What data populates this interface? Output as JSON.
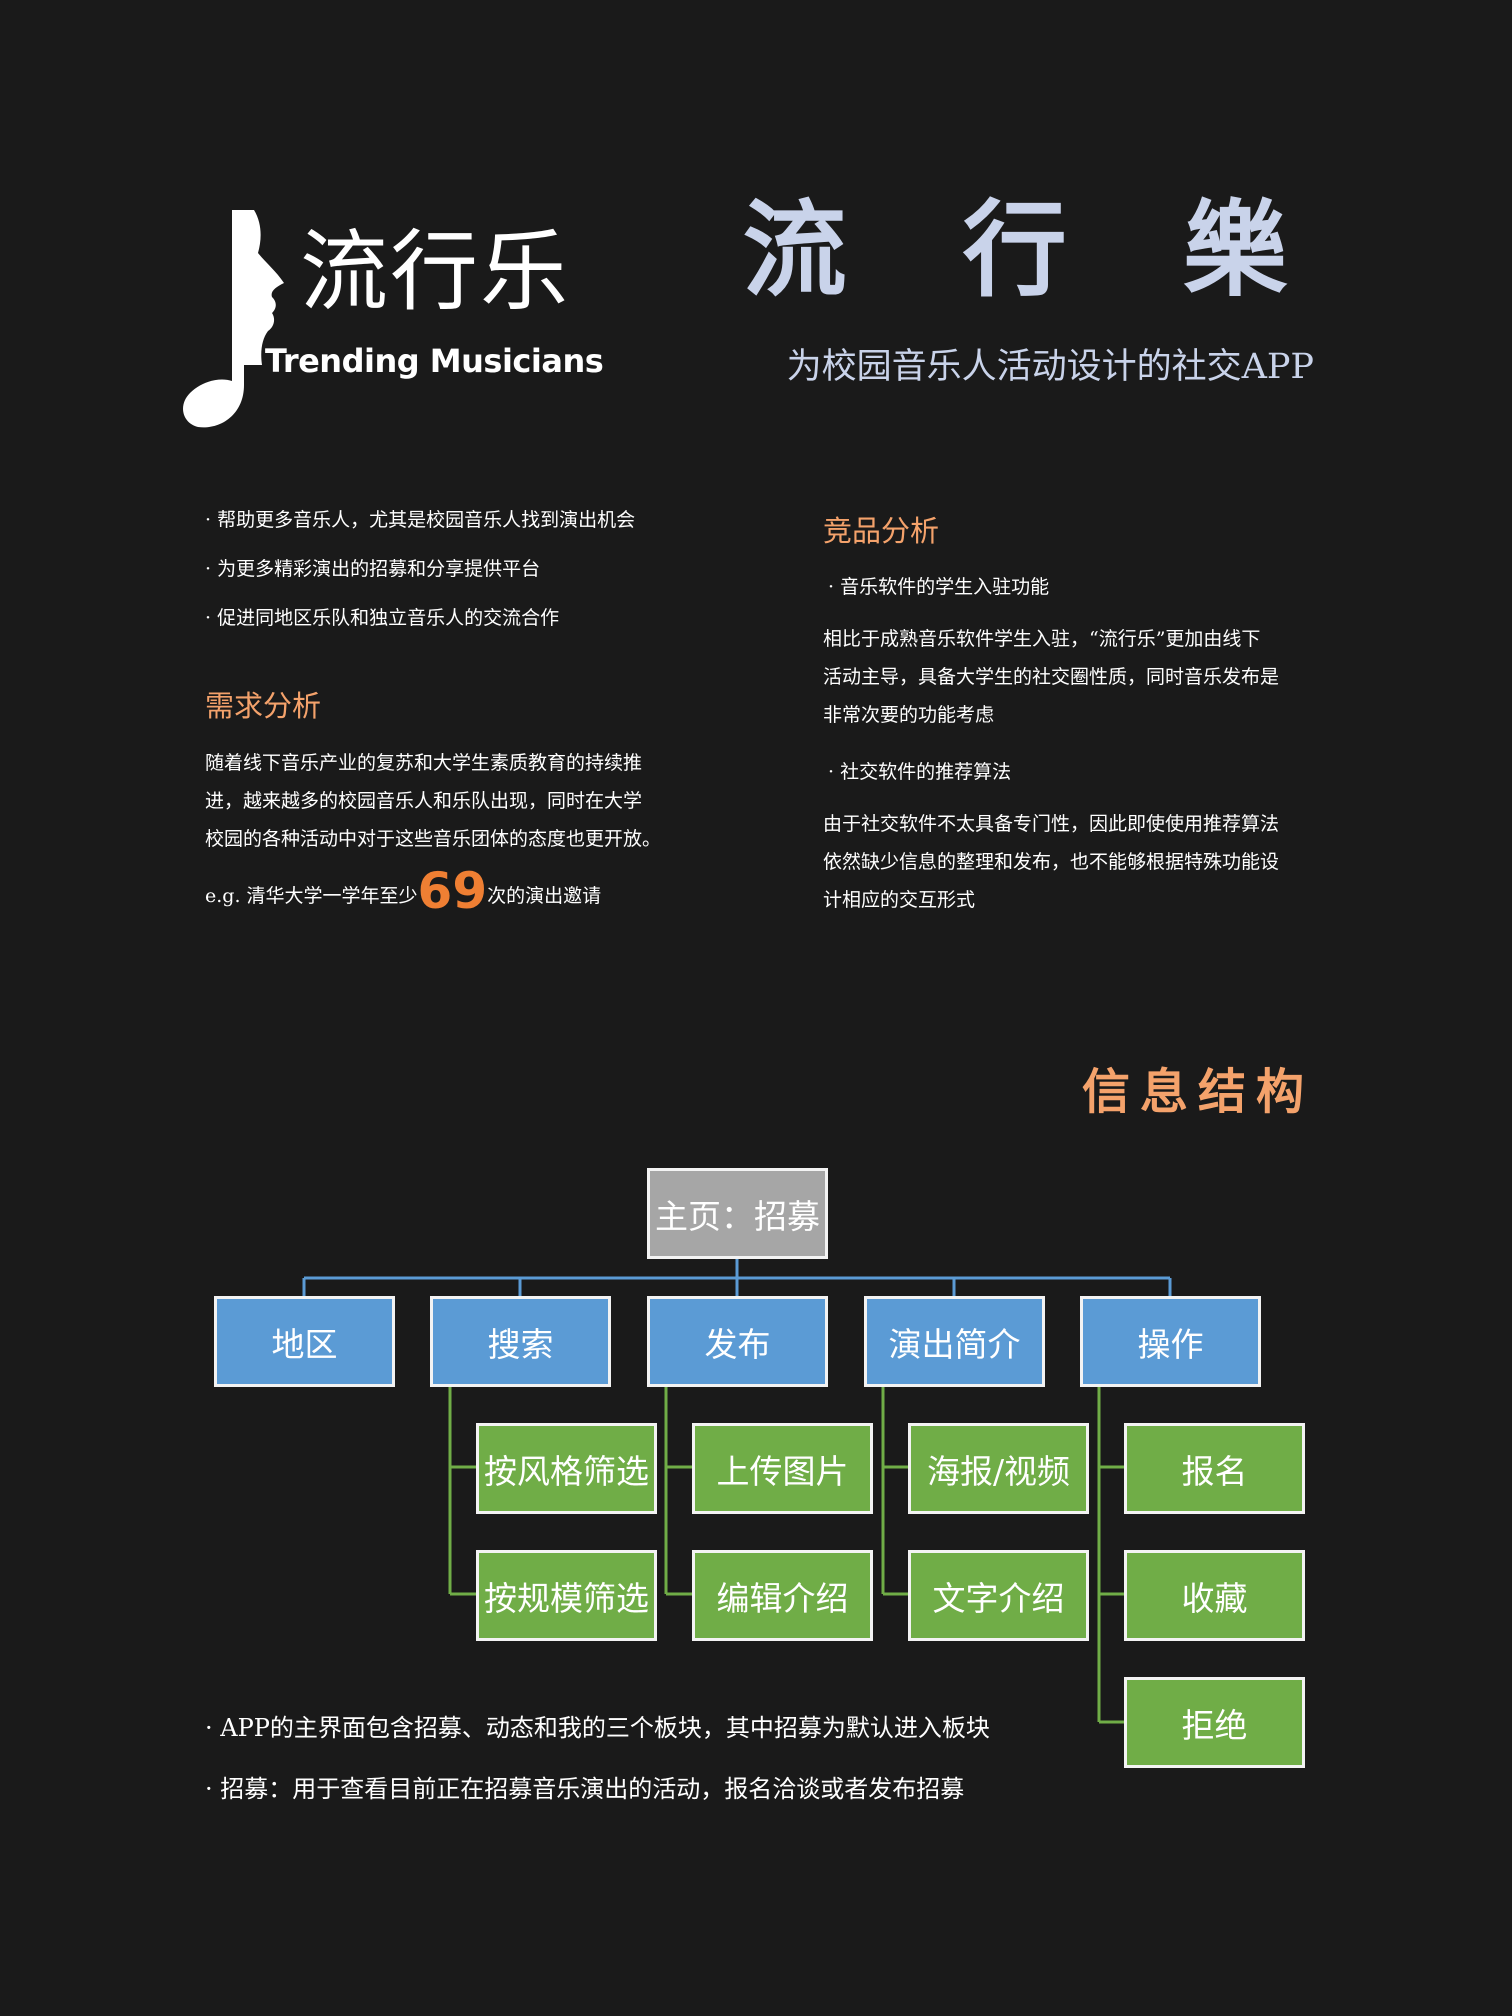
{
  "logo": {
    "cn": "流行乐",
    "en": "Trending Musicians"
  },
  "header": {
    "title": "流 行 樂",
    "subtitle": "为校园音乐人活动设计的社交APP"
  },
  "goals": [
    "· 帮助更多音乐人，尤其是校园音乐人找到演出机会",
    "· 为更多精彩演出的招募和分享提供平台",
    "· 促进同地区乐队和独立音乐人的交流合作"
  ],
  "needs": {
    "heading": "需求分析",
    "lines": [
      "随着线下音乐产业的复苏和大学生素质教育的持续推",
      "进，越来越多的校园音乐人和乐队出现，同时在大学",
      "校园的各种活动中对于这些音乐团体的态度也更开放。"
    ],
    "example_prefix": "e.g. 清华大学一学年至少",
    "example_number": "69",
    "example_suffix": "次的演出邀请"
  },
  "competitors": {
    "heading": "竞品分析",
    "item1_title": "· 音乐软件的学生入驻功能",
    "item1_lines": [
      "相比于成熟音乐软件学生入驻，“流行乐”更加由线下",
      "活动主导，具备大学生的社交圈性质，同时音乐发布是",
      "非常次要的功能考虑"
    ],
    "item2_title": "· 社交软件的推荐算法",
    "item2_lines": [
      "由于社交软件不太具备专门性，因此即使使用推荐算法",
      "依然缺少信息的整理和发布，也不能够根据特殊功能设",
      "计相应的交互形式"
    ]
  },
  "ia": {
    "title": "信息结构",
    "root": "主页：招募",
    "level1": [
      "地区",
      "搜索",
      "发布",
      "演出简介",
      "操作"
    ],
    "children": {
      "search": [
        "按风格筛选",
        "按规模筛选"
      ],
      "publish": [
        "上传图片",
        "编辑介绍"
      ],
      "intro": [
        "海报/视频",
        "文字介绍"
      ],
      "action": [
        "报名",
        "收藏",
        "拒绝"
      ]
    }
  },
  "notes": [
    "· APP的主界面包含招募、动态和我的三个板块，其中招募为默认进入板块",
    "· 招募：用于查看目前正在招募音乐演出的活动，报名洽谈或者发布招募"
  ],
  "colors": {
    "background": "#1a1a1a",
    "title": "#c9d3ea",
    "accent": "#f4a26b",
    "number": "#ef7f33",
    "root_box": "#a6a6a6",
    "level1_box": "#5b9bd5",
    "level2_box": "#70ad47",
    "blue_line": "#5b9bd5",
    "green_line": "#70ad47"
  }
}
